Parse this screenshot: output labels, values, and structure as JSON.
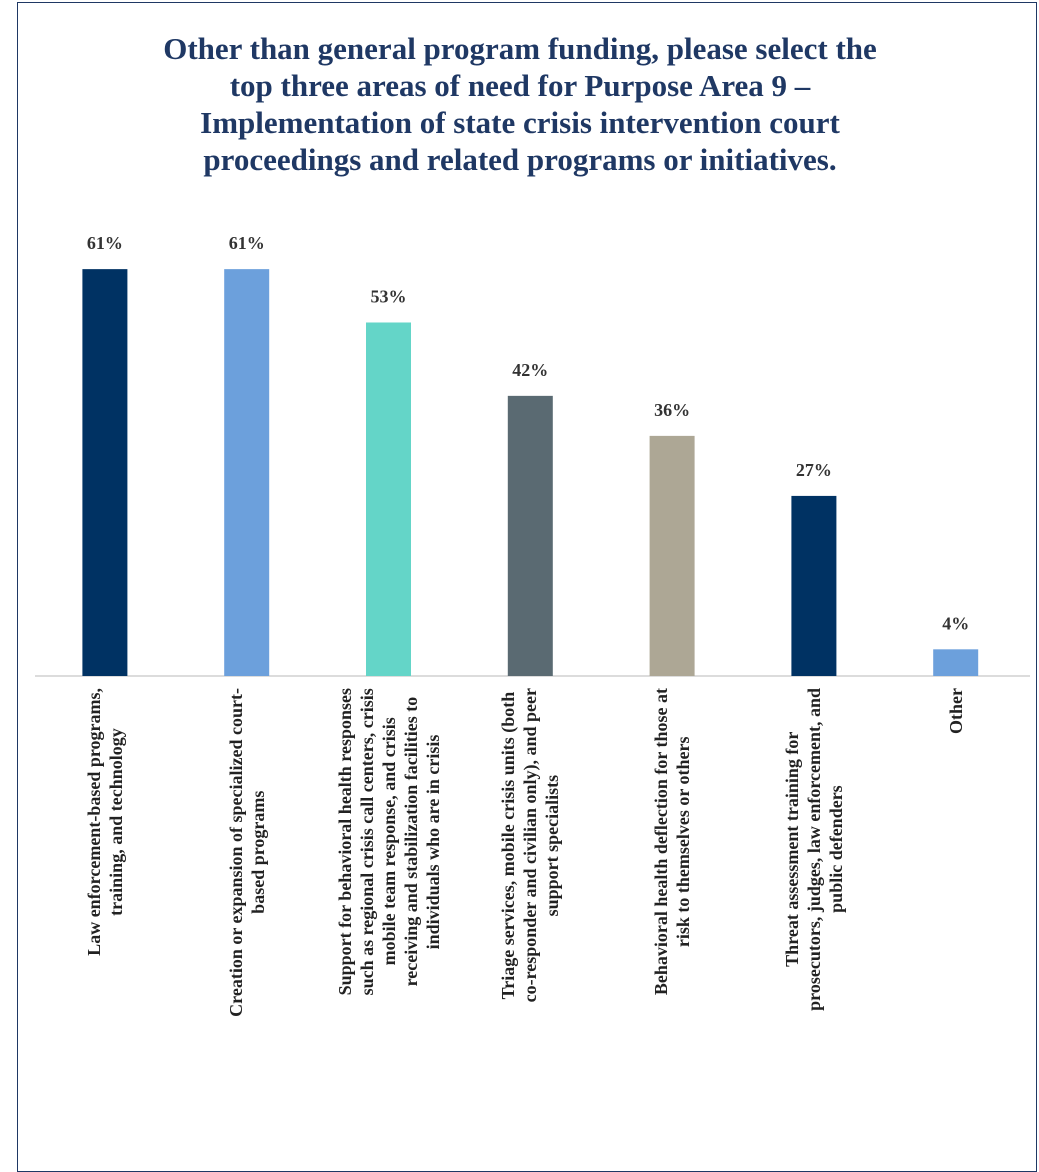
{
  "chart_data": {
    "type": "bar",
    "title": "Other than general program funding, please select the\ntop three areas of need for Purpose Area 9 –\nImplementation of state crisis intervention court\nproceedings and related programs or initiatives.",
    "categories": [
      "Law enforcement-based programs,\ntraining, and technology",
      "Creation or expansion of specialized court-\nbased programs",
      "Support for behavioral health responses\nsuch as regional crisis call centers, crisis\nmobile team response, and crisis\nreceiving and stabilization facilities to\nindividuals who are in crisis",
      "Triage services, mobile crisis units (both\nco-responder and civilian only), and peer\nsupport specialists",
      "Behavioral health deflection for those at\nrisk to themselves or others",
      "Threat assessment training for\nprosecutors, judges, law enforcement, and\npublic defenders",
      "Other"
    ],
    "values": [
      61,
      61,
      53,
      42,
      36,
      27,
      4
    ],
    "value_labels": [
      "61%",
      "61%",
      "53%",
      "42%",
      "36%",
      "27%",
      "4%"
    ],
    "colors": [
      "#003263",
      "#6ca0dc",
      "#64d5c8",
      "#5a6a72",
      "#ada795",
      "#003263",
      "#6ca0dc"
    ]
  }
}
